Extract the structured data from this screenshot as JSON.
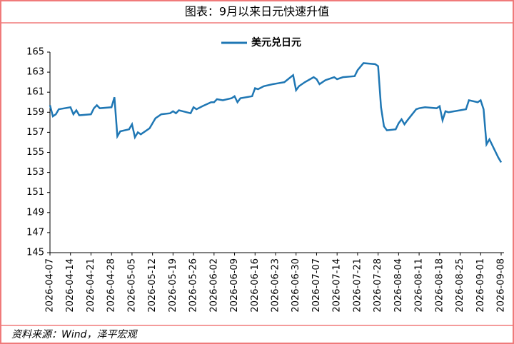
{
  "header": {
    "title": "图表：9月以来日元快速升值"
  },
  "chart_data": {
    "type": "line",
    "x": [
      "2026-04-07",
      "2026-04-08",
      "2026-04-09",
      "2026-04-10",
      "2026-04-14",
      "2026-04-15",
      "2026-04-16",
      "2026-04-17",
      "2026-04-21",
      "2026-04-22",
      "2026-04-23",
      "2026-04-24",
      "2026-04-28",
      "2026-04-29",
      "2026-04-30",
      "2026-05-01",
      "2026-05-04",
      "2026-05-05",
      "2026-05-06",
      "2026-05-07",
      "2026-05-08",
      "2026-05-11",
      "2026-05-13",
      "2026-05-15",
      "2026-05-18",
      "2026-05-19",
      "2026-05-20",
      "2026-05-21",
      "2026-05-25",
      "2026-05-26",
      "2026-05-27",
      "2026-05-29",
      "2026-06-01",
      "2026-06-02",
      "2026-06-03",
      "2026-06-05",
      "2026-06-08",
      "2026-06-09",
      "2026-06-10",
      "2026-06-11",
      "2026-06-15",
      "2026-06-16",
      "2026-06-17",
      "2026-06-19",
      "2026-06-22",
      "2026-06-24",
      "2026-06-26",
      "2026-06-29",
      "2026-06-30",
      "2026-07-01",
      "2026-07-03",
      "2026-07-06",
      "2026-07-07",
      "2026-07-08",
      "2026-07-10",
      "2026-07-13",
      "2026-07-14",
      "2026-07-16",
      "2026-07-20",
      "2026-07-21",
      "2026-07-23",
      "2026-07-27",
      "2026-07-28",
      "2026-07-29",
      "2026-07-30",
      "2026-07-31",
      "2026-08-03",
      "2026-08-04",
      "2026-08-05",
      "2026-08-06",
      "2026-08-07",
      "2026-08-10",
      "2026-08-11",
      "2026-08-13",
      "2026-08-17",
      "2026-08-18",
      "2026-08-19",
      "2026-08-20",
      "2026-08-21",
      "2026-08-25",
      "2026-08-27",
      "2026-08-28",
      "2026-08-31",
      "2026-09-01",
      "2026-09-02",
      "2026-09-03",
      "2026-09-04",
      "2026-09-07",
      "2026-09-08"
    ],
    "series": [
      {
        "name": "美元兑日元",
        "color": "#1f77b4",
        "values": [
          159.7,
          158.6,
          158.8,
          159.3,
          159.5,
          158.8,
          159.2,
          158.7,
          158.8,
          159.4,
          159.7,
          159.4,
          159.5,
          160.5,
          156.6,
          157.1,
          157.3,
          157.8,
          156.5,
          157.0,
          156.8,
          157.4,
          158.4,
          158.8,
          158.9,
          159.1,
          158.9,
          159.2,
          158.9,
          159.5,
          159.3,
          159.6,
          160.0,
          160.0,
          160.3,
          160.2,
          160.4,
          160.6,
          160.0,
          160.4,
          160.6,
          161.4,
          161.3,
          161.6,
          161.8,
          161.9,
          162.0,
          162.7,
          161.2,
          161.6,
          162.0,
          162.5,
          162.3,
          161.8,
          162.2,
          162.5,
          162.3,
          162.5,
          162.6,
          163.2,
          163.9,
          163.8,
          163.6,
          159.5,
          157.6,
          157.2,
          157.3,
          157.9,
          158.3,
          157.8,
          158.2,
          159.3,
          159.4,
          159.5,
          159.4,
          159.6,
          158.2,
          159.1,
          159.0,
          159.2,
          159.3,
          160.2,
          160.0,
          160.2,
          159.3,
          155.8,
          156.3,
          154.5,
          154.0
        ]
      }
    ],
    "xlim": [
      "2026-04-07",
      "2026-09-08"
    ],
    "xticks": [
      "2026-04-07",
      "2026-04-14",
      "2026-04-21",
      "2026-04-28",
      "2026-05-05",
      "2026-05-12",
      "2026-05-19",
      "2026-05-26",
      "2026-06-02",
      "2026-06-09",
      "2026-06-16",
      "2026-06-23",
      "2026-06-30",
      "2026-07-07",
      "2026-07-14",
      "2026-07-21",
      "2026-07-28",
      "2026-08-04",
      "2026-08-11",
      "2026-08-18",
      "2026-08-25",
      "2026-09-01",
      "2026-09-08"
    ],
    "ylim": [
      145,
      165
    ],
    "yticks": [
      145,
      147,
      149,
      151,
      153,
      155,
      157,
      159,
      161,
      163,
      165
    ],
    "legend": "top"
  },
  "footer": {
    "source": "资料来源：Wind，泽平宏观"
  }
}
